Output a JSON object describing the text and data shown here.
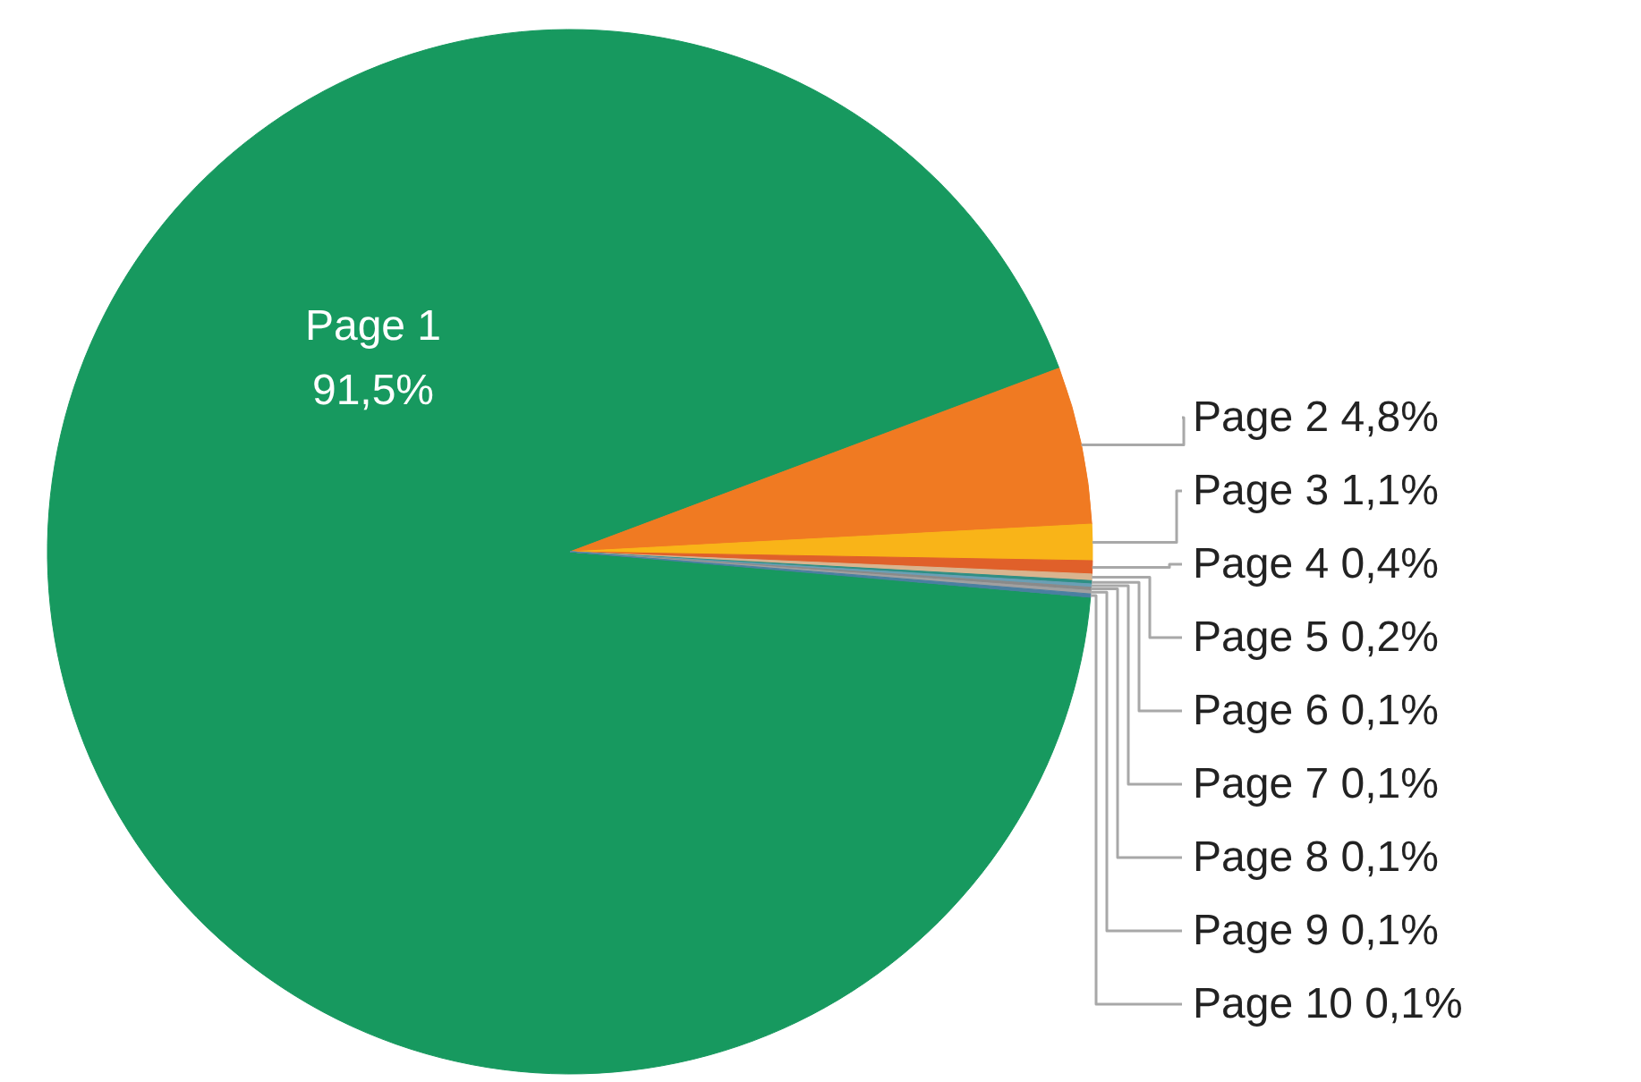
{
  "chart_data": {
    "type": "pie",
    "categories": [
      "Page 1",
      "Page 2",
      "Page 3",
      "Page 4",
      "Page 5",
      "Page 6",
      "Page 7",
      "Page 8",
      "Page 9",
      "Page 10"
    ],
    "values": [
      91.5,
      4.8,
      1.1,
      0.4,
      0.2,
      0.1,
      0.1,
      0.1,
      0.1,
      0.1
    ],
    "value_labels": [
      "91,5%",
      "4,8%",
      "1,1%",
      "0,4%",
      "0,2%",
      "0,1%",
      "0,1%",
      "0,1%",
      "0,1%",
      "0,1%"
    ],
    "colors": [
      "#17995f",
      "#f07a22",
      "#f9b418",
      "#e0602a",
      "#d9b48f",
      "#2f8f84",
      "#6a9fb5",
      "#8a8a8a",
      "#a0a0a0",
      "#4a7fa0"
    ]
  }
}
